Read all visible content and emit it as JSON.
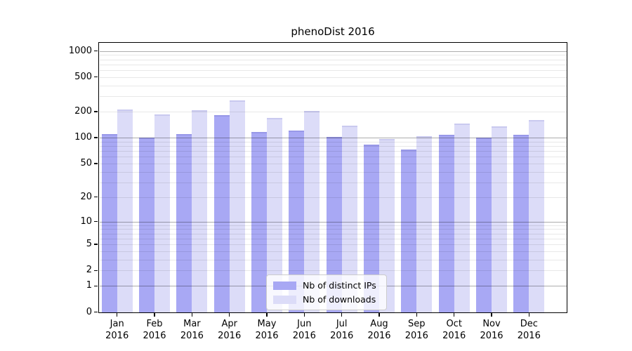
{
  "chart_data": {
    "type": "bar",
    "title": "phenoDist 2016",
    "year_label": "2016",
    "categories": [
      "Jan",
      "Feb",
      "Mar",
      "Apr",
      "May",
      "Jun",
      "Jul",
      "Aug",
      "Sep",
      "Oct",
      "Nov",
      "Dec"
    ],
    "series": [
      {
        "key": "distinct-ips",
        "name": "Nb of distinct IPs",
        "color": "#a8a8f4",
        "edge_color": "#9898e8",
        "values": [
          111,
          100,
          111,
          183,
          117,
          121,
          103,
          83,
          73,
          108,
          100,
          109
        ]
      },
      {
        "key": "downloads",
        "name": "Nb of downloads",
        "color": "#dcdcf8",
        "edge_color": "#c9c9ef",
        "values": [
          213,
          186,
          206,
          268,
          170,
          205,
          137,
          96,
          104,
          146,
          135,
          161
        ]
      }
    ],
    "y_axis": {
      "scale": "log1p",
      "ticks": [
        0,
        1,
        2,
        5,
        10,
        20,
        50,
        100,
        200,
        500,
        1000
      ],
      "major_gridlines": [
        1,
        10,
        100,
        1000
      ],
      "minor_gridlines": [
        2,
        3,
        4,
        5,
        6,
        7,
        8,
        9,
        20,
        30,
        40,
        50,
        60,
        70,
        80,
        90,
        200,
        300,
        400,
        500,
        600,
        700,
        800,
        900
      ],
      "ylim": [
        0,
        1080
      ]
    },
    "xlabel": "",
    "ylabel": "",
    "grid": true,
    "legend_position": "bottom-center"
  },
  "colors": {
    "background": "#ffffff",
    "spine": "#000000",
    "major_grid": "#b3b3b3",
    "minor_grid": "#e8e8e8",
    "legend_border": "#cccccc"
  }
}
